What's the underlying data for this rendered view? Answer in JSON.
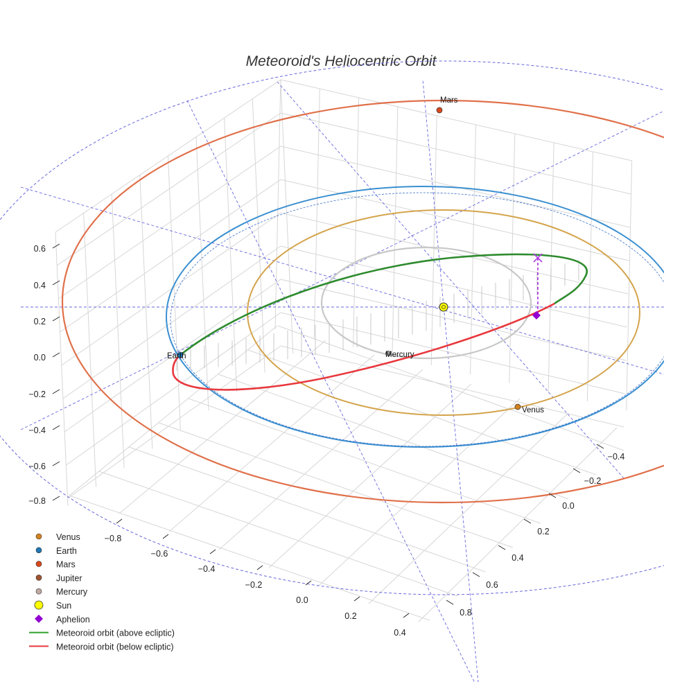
{
  "chart_data": {
    "type": "3d-orbit",
    "title": "Meteoroid's Heliocentric Orbit",
    "axes": {
      "x_ticks": [
        "−0.8",
        "−0.6",
        "−0.4",
        "−0.2",
        "0.0",
        "0.2",
        "0.4"
      ],
      "y_ticks": [
        "−0.4",
        "−0.2",
        "0.0",
        "0.2",
        "0.4",
        "0.6",
        "0.8"
      ],
      "z_ticks": [
        "0.6",
        "0.4",
        "0.2",
        "0.0",
        "−0.2",
        "−0.4",
        "−0.6",
        "−0.8"
      ],
      "x_range": [
        -0.9,
        0.5
      ],
      "y_range": [
        -0.5,
        0.9
      ],
      "z_range": [
        -0.85,
        0.7
      ]
    },
    "planets": [
      {
        "name": "Mercury",
        "label": "Mercury",
        "color": "#9e9e9e",
        "orbit_color": "#c8c8c8"
      },
      {
        "name": "Venus",
        "label": "Venus",
        "color": "#d2821e",
        "orbit_color": "#d4a44c"
      },
      {
        "name": "Earth",
        "label": "Earth",
        "color": "#1f77b4",
        "orbit_color": "#3a8fd0"
      },
      {
        "name": "Mars",
        "label": "Mars",
        "color": "#d9481c",
        "orbit_color": "#e0704a"
      }
    ],
    "sun": {
      "name": "Sun",
      "color": "#ffff00"
    },
    "aphelion": {
      "name": "Aphelion",
      "color": "#9400d3"
    },
    "meteoroid": {
      "above_label": "Meteoroid orbit (above ecliptic)",
      "below_label": "Meteoroid orbit (below ecliptic)",
      "above_color": "#2e8b2e",
      "below_color": "#e8383d"
    },
    "legend": [
      {
        "label": "Venus",
        "marker": "dot",
        "color": "#d2821e"
      },
      {
        "label": "Earth",
        "marker": "dot",
        "color": "#1f77b4"
      },
      {
        "label": "Mars",
        "marker": "dot",
        "color": "#d9481c"
      },
      {
        "label": "Jupiter",
        "marker": "dot",
        "color": "#a0522d"
      },
      {
        "label": "Mercury",
        "marker": "dot",
        "color": "#c0a8a0"
      },
      {
        "label": "Sun",
        "marker": "big-dot",
        "color": "#ffff00"
      },
      {
        "label": "Aphelion",
        "marker": "diamond",
        "color": "#9400d3"
      },
      {
        "label": "Meteoroid orbit (above ecliptic)",
        "marker": "line",
        "color": "#2ca02c"
      },
      {
        "label": "Meteoroid orbit (below ecliptic)",
        "marker": "line",
        "color": "#e8383d"
      }
    ],
    "grid": true,
    "guide_line_color": "#6666dd"
  }
}
